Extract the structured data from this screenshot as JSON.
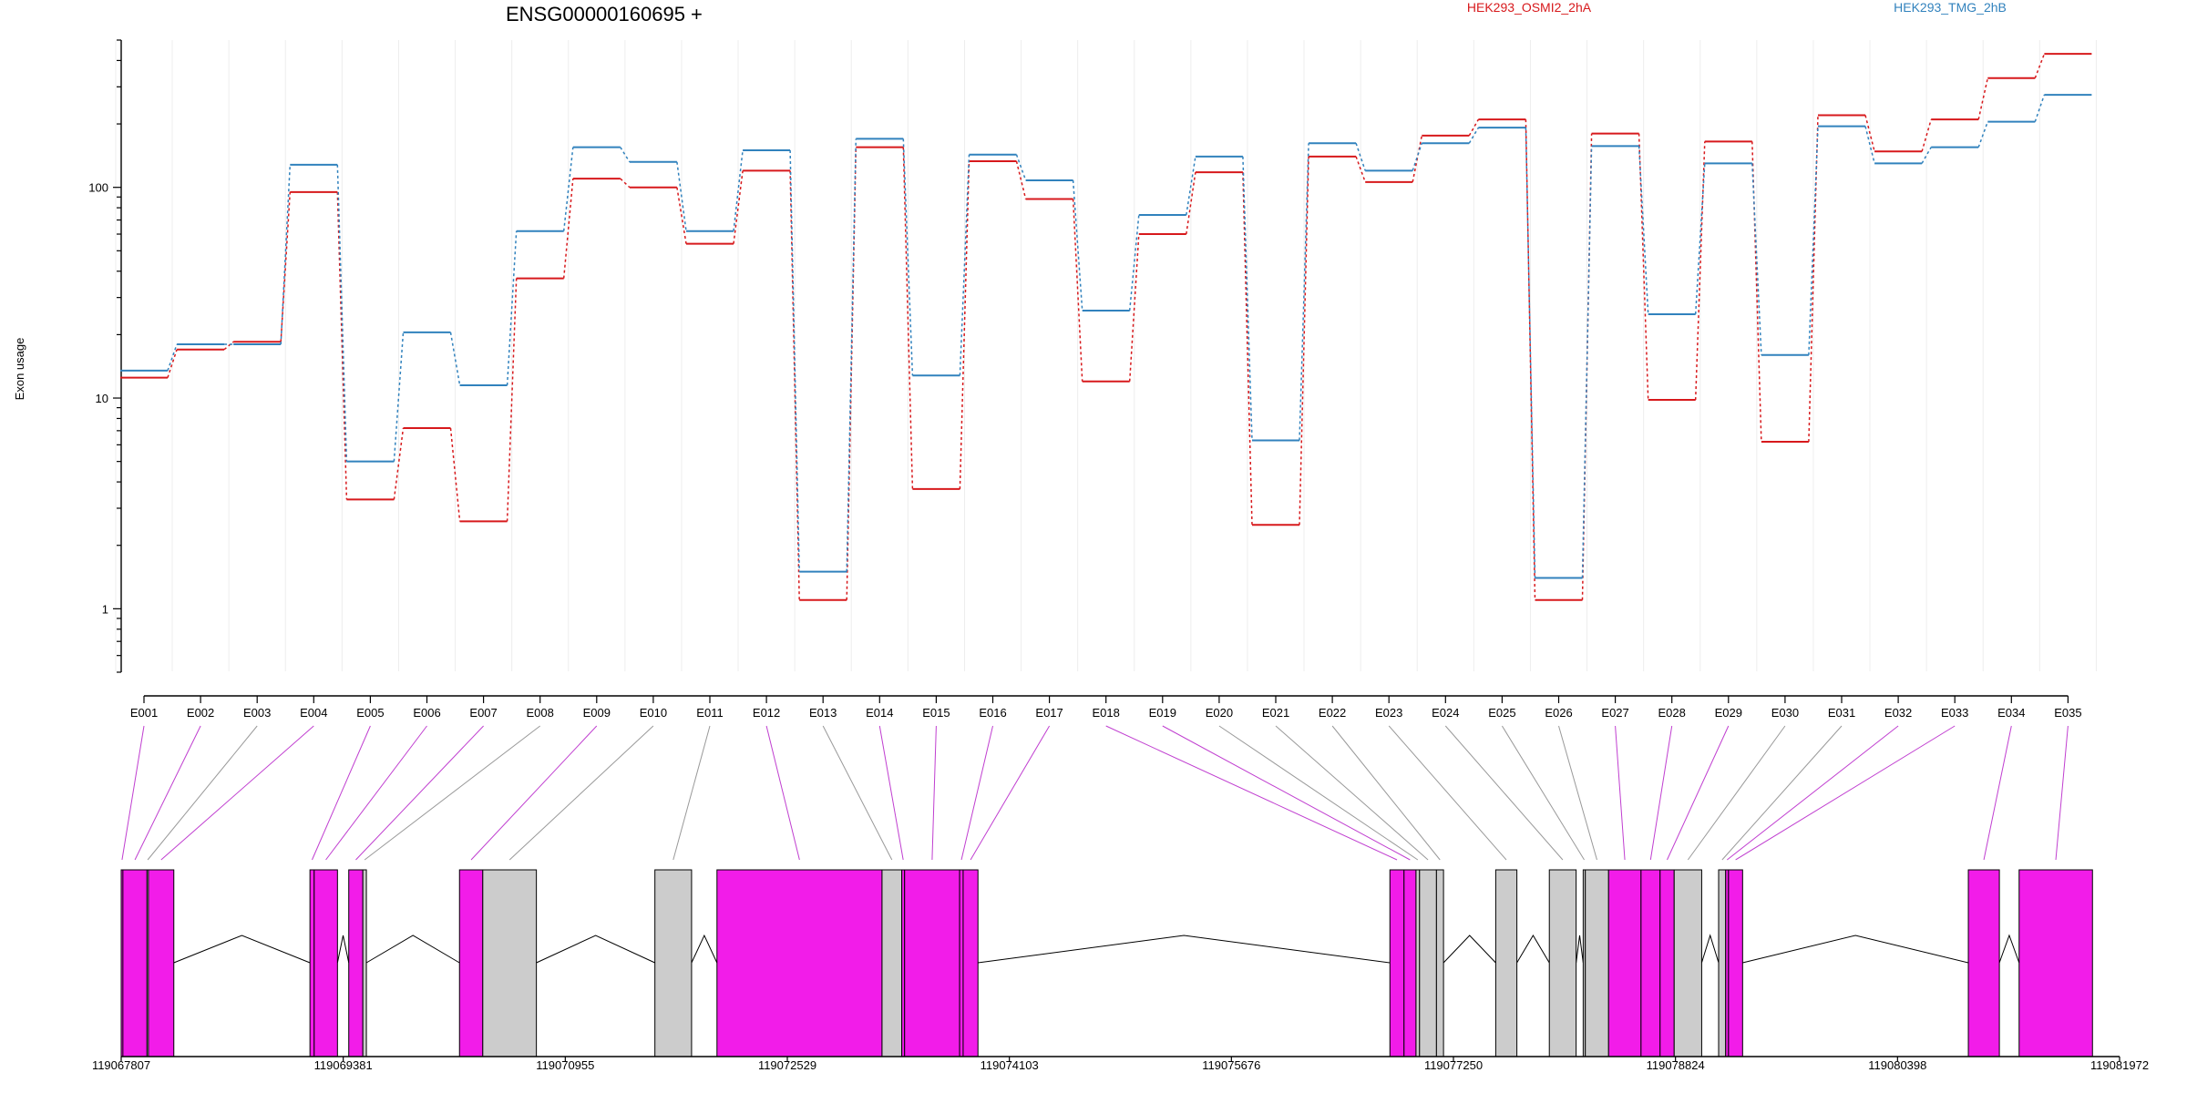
{
  "colors": {
    "condition_a": "#d7191c",
    "condition_b": "#3182bd",
    "exon_significant": "#f21ce9",
    "exon_normal": "#cccccc"
  },
  "chart_data": {
    "type": "line",
    "title": "ENSG00000160695 +",
    "ylabel": "Exon usage",
    "y_scale": "log",
    "ylim": [
      0.5,
      500
    ],
    "y_ticks": [
      1,
      10,
      100
    ],
    "y_tick_labels": [
      "1",
      "10",
      "100"
    ],
    "grid": "vertical",
    "legend_position": "top-right",
    "categories": [
      "E001",
      "E002",
      "E003",
      "E004",
      "E005",
      "E006",
      "E007",
      "E008",
      "E009",
      "E010",
      "E011",
      "E012",
      "E013",
      "E014",
      "E015",
      "E016",
      "E017",
      "E018",
      "E019",
      "E020",
      "E021",
      "E022",
      "E023",
      "E024",
      "E025",
      "E026",
      "E027",
      "E028",
      "E029",
      "E030",
      "E031",
      "E032",
      "E033",
      "E034",
      "E035"
    ],
    "series": [
      {
        "name": "HEK293_OSMI2_2hA",
        "color": "#d7191c",
        "values": [
          12.5,
          17,
          18.5,
          95,
          3.3,
          7.2,
          2.6,
          37,
          110,
          100,
          54,
          120,
          1.1,
          155,
          3.7,
          133,
          88,
          12,
          60,
          118,
          2.5,
          140,
          106,
          176,
          210,
          1.1,
          180,
          9.8,
          165,
          6.2,
          220,
          148,
          210,
          330,
          430
        ]
      },
      {
        "name": "HEK293_TMG_2hB",
        "color": "#3182bd",
        "values": [
          13.5,
          18,
          18,
          128,
          5,
          20.5,
          11.5,
          62,
          155,
          132,
          62,
          150,
          1.5,
          170,
          12.8,
          143,
          108,
          26,
          74,
          140,
          6.3,
          162,
          120,
          162,
          192,
          1.4,
          157,
          25,
          130,
          16,
          195,
          130,
          155,
          205,
          275
        ]
      }
    ],
    "exons": [
      {
        "id": "E001",
        "start": 119067807,
        "end": 119067819,
        "significant": true
      },
      {
        "id": "E002",
        "start": 119067819,
        "end": 119067990,
        "significant": true
      },
      {
        "id": "E003",
        "start": 119067990,
        "end": 119068000,
        "significant": false
      },
      {
        "id": "E004",
        "start": 119068000,
        "end": 119068180,
        "significant": true
      },
      {
        "id": "E005",
        "start": 119069145,
        "end": 119069175,
        "significant": true
      },
      {
        "id": "E006",
        "start": 119069175,
        "end": 119069340,
        "significant": true
      },
      {
        "id": "E007",
        "start": 119069420,
        "end": 119069520,
        "significant": true
      },
      {
        "id": "E008",
        "start": 119069520,
        "end": 119069545,
        "significant": false
      },
      {
        "id": "E009",
        "start": 119070205,
        "end": 119070370,
        "significant": true
      },
      {
        "id": "E010",
        "start": 119070370,
        "end": 119070750,
        "significant": false
      },
      {
        "id": "E011",
        "start": 119071590,
        "end": 119071850,
        "significant": false
      },
      {
        "id": "E012",
        "start": 119072030,
        "end": 119073200,
        "significant": true
      },
      {
        "id": "E013",
        "start": 119073200,
        "end": 119073340,
        "significant": false
      },
      {
        "id": "E014",
        "start": 119073340,
        "end": 119073360,
        "significant": true
      },
      {
        "id": "E015",
        "start": 119073360,
        "end": 119073750,
        "significant": true
      },
      {
        "id": "E016",
        "start": 119073750,
        "end": 119073775,
        "significant": true
      },
      {
        "id": "E017",
        "start": 119073775,
        "end": 119073880,
        "significant": true
      },
      {
        "id": "E018",
        "start": 119076800,
        "end": 119076900,
        "significant": true
      },
      {
        "id": "E019",
        "start": 119076900,
        "end": 119076985,
        "significant": true
      },
      {
        "id": "E020",
        "start": 119076985,
        "end": 119077010,
        "significant": false
      },
      {
        "id": "E021",
        "start": 119077010,
        "end": 119077130,
        "significant": false
      },
      {
        "id": "E022",
        "start": 119077130,
        "end": 119077180,
        "significant": false
      },
      {
        "id": "E023",
        "start": 119077550,
        "end": 119077700,
        "significant": false
      },
      {
        "id": "E024",
        "start": 119077930,
        "end": 119078120,
        "significant": false
      },
      {
        "id": "E025",
        "start": 119078170,
        "end": 119078185,
        "significant": false
      },
      {
        "id": "E026",
        "start": 119078185,
        "end": 119078350,
        "significant": false
      },
      {
        "id": "E027",
        "start": 119078350,
        "end": 119078580,
        "significant": true
      },
      {
        "id": "E028",
        "start": 119078580,
        "end": 119078715,
        "significant": true
      },
      {
        "id": "E029",
        "start": 119078715,
        "end": 119078815,
        "significant": true
      },
      {
        "id": "E030",
        "start": 119078815,
        "end": 119079010,
        "significant": false
      },
      {
        "id": "E031",
        "start": 119079130,
        "end": 119079180,
        "significant": false
      },
      {
        "id": "E032",
        "start": 119079180,
        "end": 119079200,
        "significant": true
      },
      {
        "id": "E033",
        "start": 119079200,
        "end": 119079300,
        "significant": true
      },
      {
        "id": "E034",
        "start": 119080900,
        "end": 119081120,
        "significant": true
      },
      {
        "id": "E035",
        "start": 119081260,
        "end": 119081780,
        "significant": true
      }
    ],
    "genomic_ticks": [
      "119067807",
      "119069381",
      "119070955",
      "119072529",
      "119074103",
      "119075676",
      "119077250",
      "119078824",
      "119080398",
      "119081972"
    ],
    "genomic_range": [
      119067807,
      119081972
    ]
  }
}
